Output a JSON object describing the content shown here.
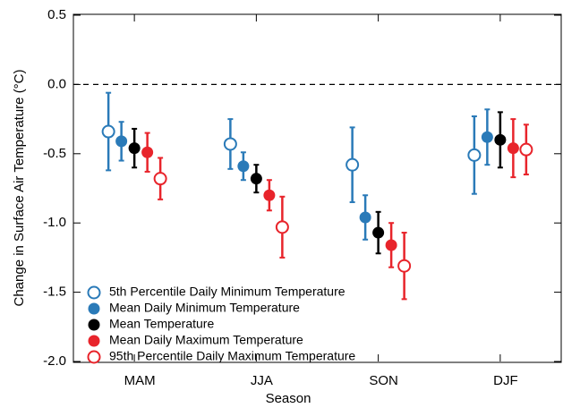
{
  "chart_data": {
    "type": "errorbar",
    "xlabel": "Season",
    "ylabel": "Change in Surface Air Temperature (°C)",
    "categories": [
      "MAM",
      "JJA",
      "SON",
      "DJF"
    ],
    "ylim": [
      -2.0,
      0.5
    ],
    "yticks": [
      0.5,
      {
        "value": 0,
        "label": "0.0"
      },
      -0.5,
      {
        "value": -1,
        "label": "-1.0"
      },
      -1.5,
      {
        "value": -2,
        "label": "-2.0"
      }
    ],
    "hline": 0,
    "legend": "lower left",
    "series": [
      {
        "name": "5th Percentile Daily Minimum Temperature",
        "color": "#2a7ab8",
        "marker": "open",
        "values": [
          -0.34,
          -0.43,
          -0.58,
          -0.51
        ],
        "errors": [
          0.28,
          0.18,
          0.27,
          0.28
        ]
      },
      {
        "name": "Mean Daily Minimum Temperature",
        "color": "#2a7ab8",
        "marker": "filled",
        "values": [
          -0.41,
          -0.59,
          -0.96,
          -0.38
        ],
        "errors": [
          0.14,
          0.1,
          0.16,
          0.2
        ]
      },
      {
        "name": "Mean Temperature",
        "color": "#000000",
        "marker": "filled",
        "values": [
          -0.46,
          -0.68,
          -1.07,
          -0.4
        ],
        "errors": [
          0.14,
          0.1,
          0.15,
          0.2
        ]
      },
      {
        "name": "Mean Daily Maximum Temperature",
        "color": "#e8242b",
        "marker": "filled",
        "values": [
          -0.49,
          -0.8,
          -1.16,
          -0.46
        ],
        "errors": [
          0.14,
          0.11,
          0.16,
          0.21
        ]
      },
      {
        "name": "95th Percentile Daily Maximum Temperature",
        "color": "#e8242b",
        "marker": "open",
        "values": [
          -0.68,
          -1.03,
          -1.31,
          -0.47
        ],
        "errors": [
          0.15,
          0.22,
          0.24,
          0.18
        ]
      }
    ]
  }
}
